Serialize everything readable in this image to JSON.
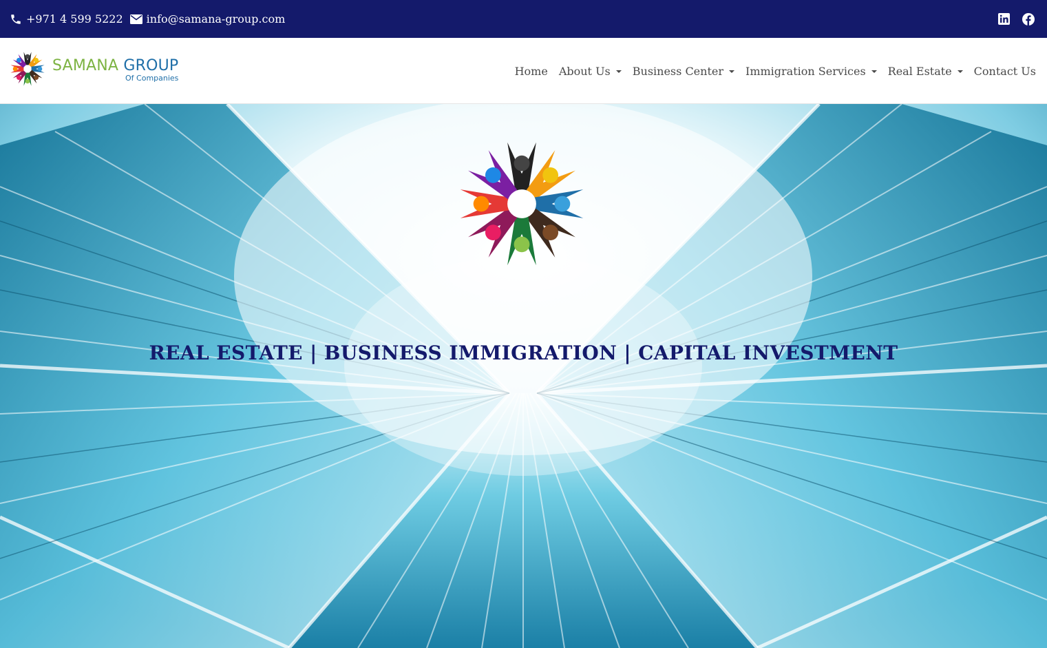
{
  "topbar": {
    "phone": "+971 4 599 5222",
    "email": "info@samana-group.com",
    "icons": [
      "phone-icon",
      "mail-icon",
      "linkedin-icon",
      "facebook-icon"
    ]
  },
  "brand": {
    "name_part1": "SAMANA",
    "name_part2": "GROUP",
    "subtitle": "Of Companies"
  },
  "nav": {
    "items": [
      {
        "label": "Home",
        "has_dropdown": false
      },
      {
        "label": "About Us",
        "has_dropdown": true
      },
      {
        "label": "Business Center",
        "has_dropdown": true
      },
      {
        "label": "Immigration Services",
        "has_dropdown": true
      },
      {
        "label": "Real Estate",
        "has_dropdown": true
      },
      {
        "label": "Contact Us",
        "has_dropdown": false
      }
    ]
  },
  "hero": {
    "tagline": "REAL ESTATE | BUSINESS IMMIGRATION | CAPITAL INVESTMENT"
  },
  "colors": {
    "topbar_bg": "#141a6b",
    "brand_green": "#7cb342",
    "brand_blue": "#1f6fa8",
    "tagline": "#141a6b",
    "nav_text": "#4a4a4a"
  }
}
